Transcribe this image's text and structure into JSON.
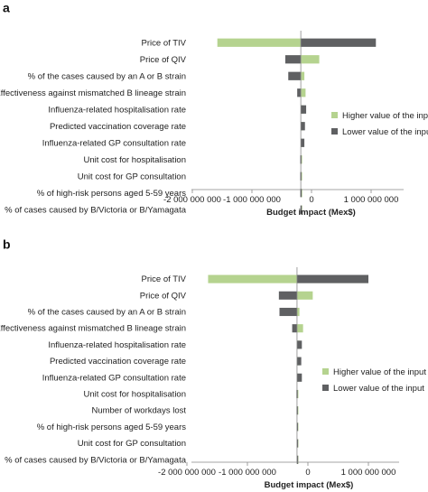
{
  "chart_data": [
    {
      "panel": "a",
      "type": "bar",
      "orientation": "horizontal",
      "variant": "tornado",
      "xlabel": "Budget impact (Mex$)",
      "xlim": [
        -2000000000,
        1200000000
      ],
      "xticks": [
        -2000000000,
        -1000000000,
        0,
        1000000000
      ],
      "xtick_labels": [
        "-2 000 000 000",
        "-1 000 000 000",
        "0",
        "1 000 000 000"
      ],
      "baseline": -180000000,
      "grid": false,
      "legend_position": "right",
      "colors": {
        "Higher value of the input": "#b5d38f",
        "Lower value of the input": "#5f6062"
      },
      "categories": [
        "Price of TIV",
        "Price of QIV",
        "% of the cases caused by an A or B strain",
        "Effectiveness against mismatched B lineage strain",
        "Influenza-related hospitalisation rate",
        "Predicted vaccination coverage rate",
        "Influenza-related GP consultation rate",
        "Unit cost for hospitalisation",
        "Unit cost for GP consultation",
        "% of high-risk persons aged 5-59 years",
        "% of cases caused by B/Victoria or B/Yamagata"
      ],
      "series": [
        {
          "name": "Higher value of the input",
          "values": [
            -1580000000,
            130000000,
            -120000000,
            -100000000,
            -140000000,
            -140000000,
            -160000000,
            -160000000,
            -165000000,
            -170000000,
            -172000000
          ]
        },
        {
          "name": "Lower value of the input",
          "values": [
            1080000000,
            -440000000,
            -390000000,
            -240000000,
            -90000000,
            -110000000,
            -120000000,
            -190000000,
            -190000000,
            -188000000,
            -186000000
          ]
        }
      ]
    },
    {
      "panel": "b",
      "type": "bar",
      "orientation": "horizontal",
      "variant": "tornado",
      "xlabel": "Budget impact (Mex$)",
      "xlim": [
        -2000000000,
        1600000000
      ],
      "xticks": [
        -2000000000,
        -1000000000,
        0,
        1000000000
      ],
      "xtick_labels": [
        "-2 000 000 000",
        "-1 000 000 000",
        "0",
        "1 000 000 000"
      ],
      "baseline": -180000000,
      "grid": false,
      "legend_position": "right",
      "colors": {
        "Higher value of the input": "#b5d38f",
        "Lower value of the input": "#5f6062"
      },
      "categories": [
        "Price of TIV",
        "Price of QIV",
        "% of the cases caused by an A or B strain",
        "Effectiveness against mismatched B lineage strain",
        "Influenza-related hospitalisation rate",
        "Predicted vaccination coverage rate",
        "Influenza-related GP consultation rate",
        "Unit cost for hospitalisation",
        "Number of workdays lost",
        "% of high-risk persons aged 5-59 years",
        "Unit cost for GP consultation",
        "% of cases caused by B/Victoria or B/Yamagata"
      ],
      "series": [
        {
          "name": "Higher value of the input",
          "values": [
            -1650000000,
            80000000,
            -140000000,
            -80000000,
            -130000000,
            -140000000,
            -160000000,
            -160000000,
            -165000000,
            -170000000,
            -172000000,
            -175000000
          ]
        },
        {
          "name": "Lower value of the input",
          "values": [
            1000000000,
            -480000000,
            -470000000,
            -260000000,
            -100000000,
            -110000000,
            -100000000,
            -190000000,
            -188000000,
            -186000000,
            -185000000,
            -184000000
          ]
        }
      ]
    }
  ]
}
